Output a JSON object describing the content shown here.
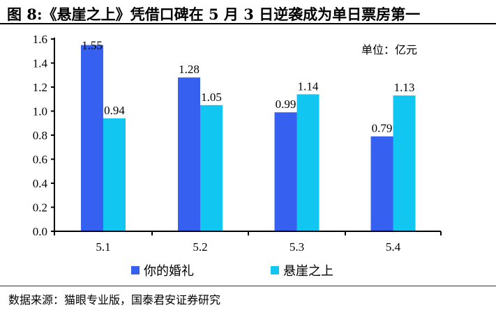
{
  "title": "图 8:《悬崖之上》凭借口碑在 5 月 3 日逆袭成为单日票房第一",
  "unit_label": "单位：亿元",
  "source": "数据来源：猫眼专业版，国泰君安证券研究",
  "colors": {
    "series1": "#3560F0",
    "series2": "#12C6F2",
    "axis": "#000000"
  },
  "legend": [
    {
      "label": "你的婚礼",
      "color": "#3560F0"
    },
    {
      "label": "悬崖之上",
      "color": "#12C6F2"
    }
  ],
  "chart_data": {
    "type": "bar",
    "title": "《悬崖之上》凭借口碑在 5 月 3 日逆袭成为单日票房第一",
    "xlabel": "",
    "ylabel": "单位：亿元",
    "categories": [
      "5.1",
      "5.2",
      "5.3",
      "5.4"
    ],
    "series": [
      {
        "name": "你的婚礼",
        "values": [
          1.55,
          1.28,
          0.99,
          0.79
        ]
      },
      {
        "name": "悬崖之上",
        "values": [
          0.94,
          1.05,
          1.14,
          1.13
        ]
      }
    ],
    "ylim": [
      0,
      1.6
    ],
    "yticks": [
      "0.0",
      "0.2",
      "0.4",
      "0.6",
      "0.8",
      "1.0",
      "1.2",
      "1.4",
      "1.6"
    ],
    "grid": false,
    "legend_position": "bottom"
  }
}
